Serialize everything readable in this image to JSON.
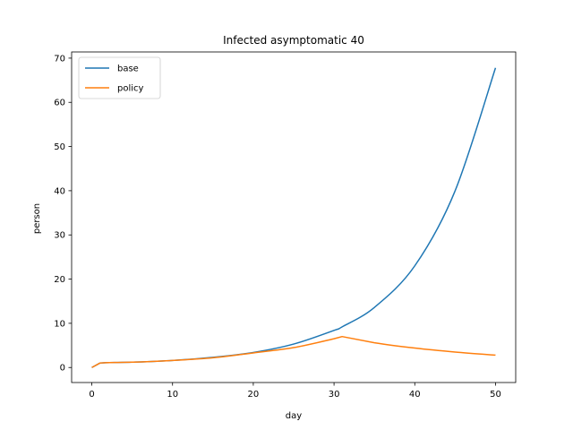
{
  "chart_data": {
    "type": "line",
    "title": "Infected asymptomatic 40",
    "xlabel": "day",
    "ylabel": "person",
    "xlim": [
      -2.5,
      52.5
    ],
    "ylim": [
      -3.4,
      71.4
    ],
    "xticks": [
      0,
      10,
      20,
      30,
      40,
      50
    ],
    "yticks": [
      0,
      10,
      20,
      30,
      40,
      50,
      60,
      70
    ],
    "grid": false,
    "legend": "upper-left",
    "series": [
      {
        "name": "base",
        "color": "#1f77b4",
        "x": [
          0,
          1,
          5,
          10,
          15,
          20,
          25,
          30,
          31,
          35,
          40,
          45,
          50
        ],
        "y": [
          0,
          1.0,
          1.2,
          1.6,
          2.3,
          3.4,
          5.3,
          8.4,
          9.2,
          13.6,
          23.0,
          40.0,
          67.8
        ]
      },
      {
        "name": "policy",
        "color": "#ff7f0e",
        "x": [
          0,
          1,
          5,
          10,
          15,
          20,
          25,
          30,
          31,
          35,
          40,
          45,
          50
        ],
        "y": [
          0,
          1.0,
          1.2,
          1.6,
          2.2,
          3.3,
          4.5,
          6.5,
          7.0,
          5.6,
          4.4,
          3.5,
          2.8
        ]
      }
    ]
  }
}
